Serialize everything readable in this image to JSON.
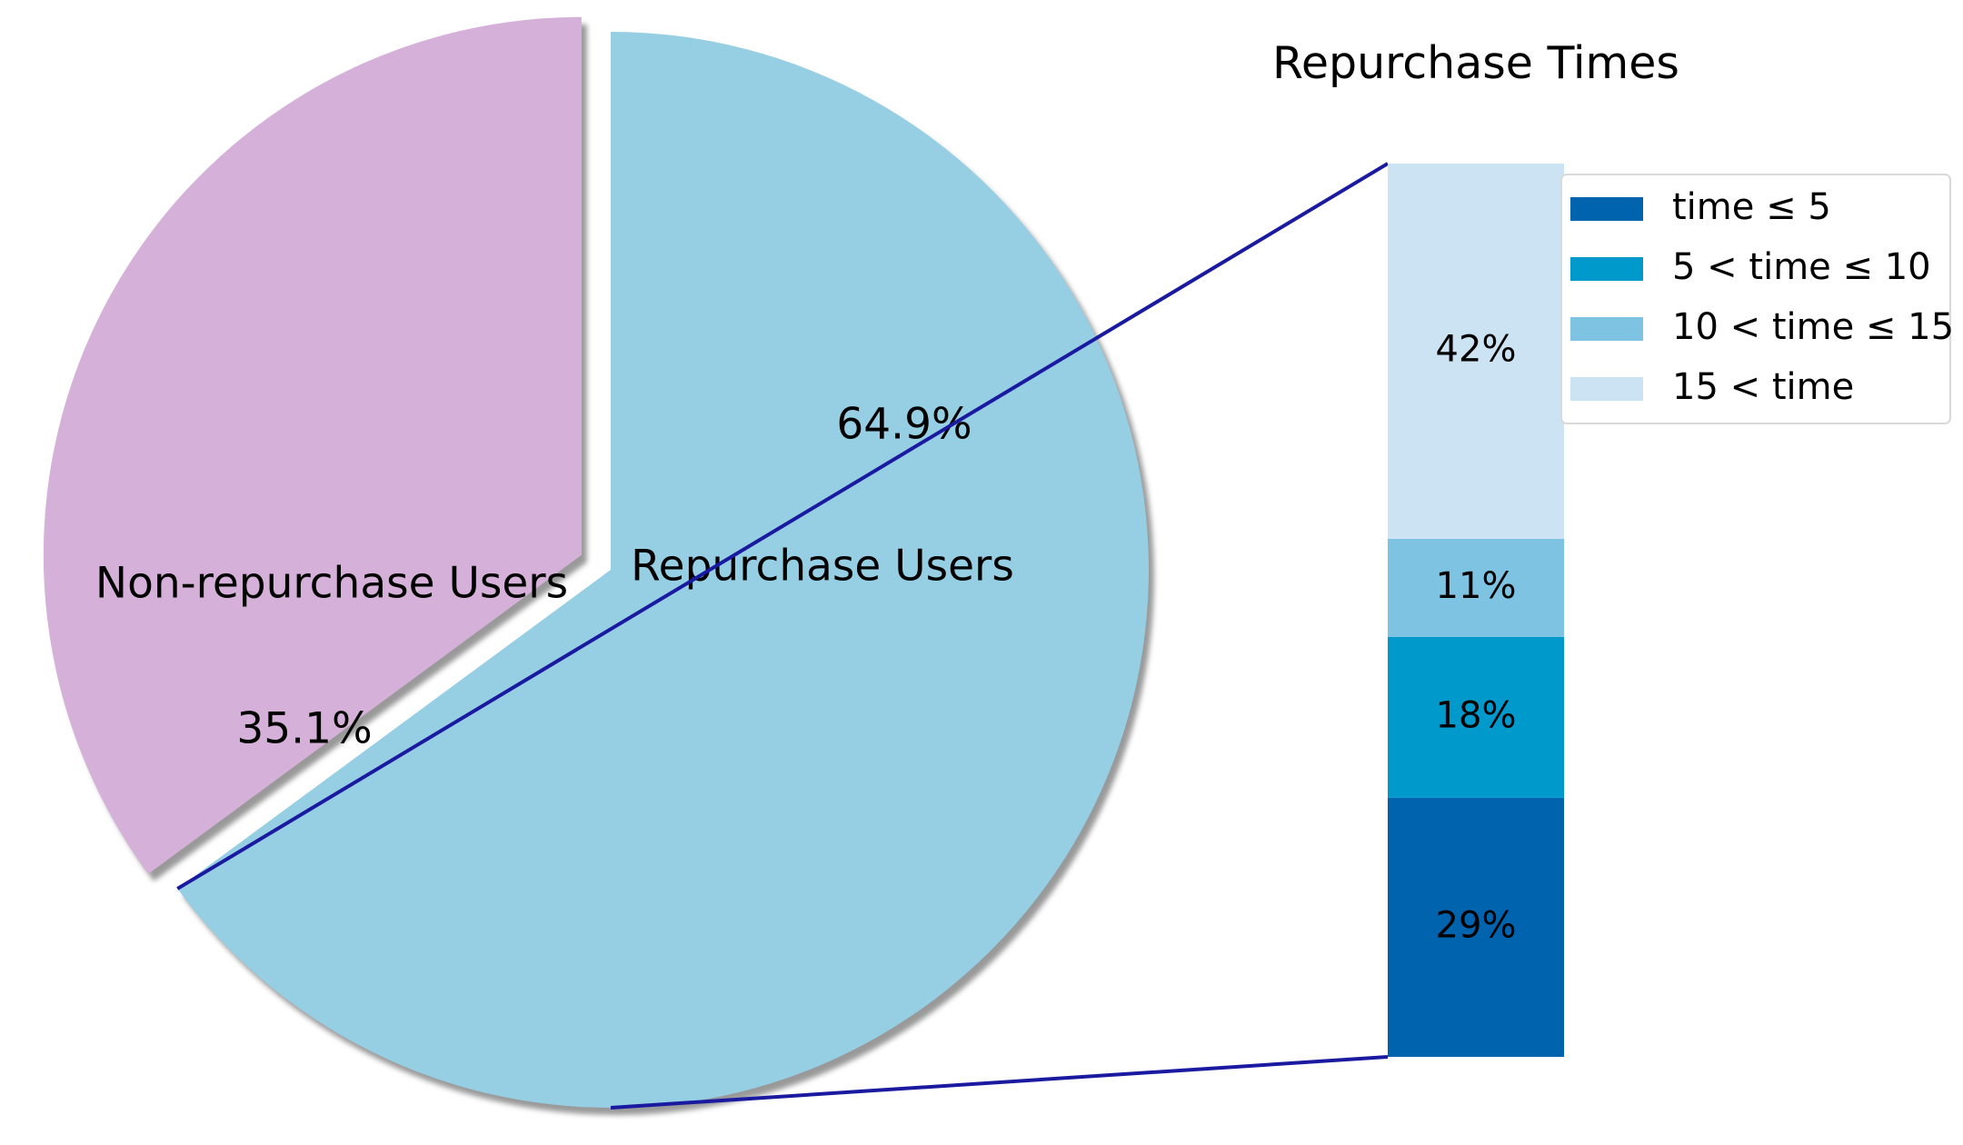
{
  "chart_data": [
    {
      "type": "pie",
      "title": "",
      "slices": [
        {
          "name": "Repurchase Users",
          "value": 64.9,
          "label": "64.9%",
          "color": "#96cee4",
          "exploded": false
        },
        {
          "name": "Non-repurchase Users",
          "value": 35.1,
          "label": "35.1%",
          "color": "#d5b0d9",
          "exploded": true
        }
      ],
      "shadow": true
    },
    {
      "type": "bar",
      "stacked": true,
      "title": "Repurchase Times",
      "categories": [
        "Repurchase Users"
      ],
      "series": [
        {
          "name": "time ≤ 5",
          "value": 29,
          "label": "29%",
          "color": "#0063ad"
        },
        {
          "name": "5 < time ≤ 10",
          "value": 18,
          "label": "18%",
          "color": "#0099cc"
        },
        {
          "name": "10 < time ≤ 15",
          "value": 11,
          "label": "11%",
          "color": "#7ec4e2"
        },
        {
          "name": "15 < time",
          "value": 42,
          "label": "42%",
          "color": "#cce3f3"
        }
      ],
      "legend": "upper-right",
      "connector_color": "#1a1aa0"
    }
  ]
}
